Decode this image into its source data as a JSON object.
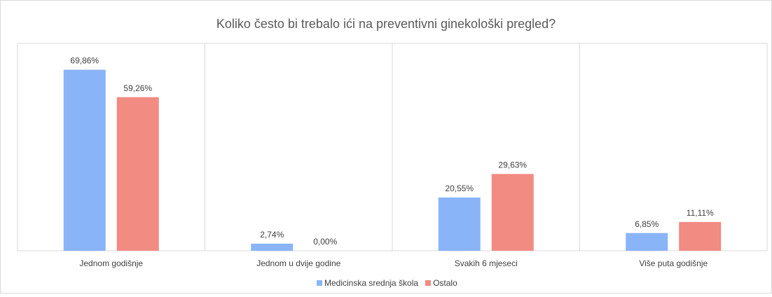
{
  "chart_data": {
    "type": "bar",
    "title": "Koliko često bi trebalo ići na preventivni ginekološki pregled?",
    "categories": [
      "Jednom godišnje",
      "Jednom u dvije godine",
      "Svakih 6 mjeseci",
      "Više puta godišnje"
    ],
    "series": [
      {
        "name": "Medicinska srednja škola",
        "color": "#8ab4f8",
        "values": [
          69.86,
          2.74,
          20.55,
          6.85
        ],
        "value_labels": [
          "69,86%",
          "2,74%",
          "20,55%",
          "6,85%"
        ]
      },
      {
        "name": "Ostalo",
        "color": "#f28b82",
        "values": [
          59.26,
          0.0,
          29.63,
          11.11
        ],
        "value_labels": [
          "59,26%",
          "0,00%",
          "29,63%",
          "11,11%"
        ]
      }
    ],
    "ylim": [
      0,
      80
    ],
    "legend": "bottom"
  }
}
